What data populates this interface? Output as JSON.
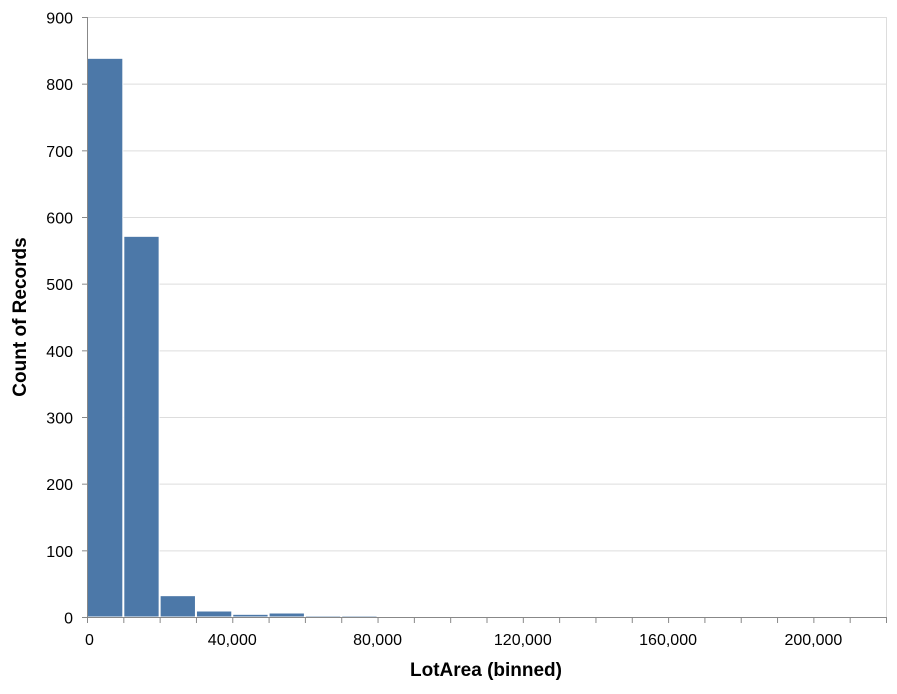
{
  "chart_data": {
    "type": "bar",
    "xlabel": "LotArea (binned)",
    "ylabel": "Count of Records",
    "xlim": [
      0,
      220000
    ],
    "ylim": [
      0,
      900
    ],
    "bin_width": 10000,
    "bins": [
      {
        "x0": 0,
        "x1": 10000,
        "count": 838
      },
      {
        "x0": 10000,
        "x1": 20000,
        "count": 571
      },
      {
        "x0": 20000,
        "x1": 30000,
        "count": 32
      },
      {
        "x0": 30000,
        "x1": 40000,
        "count": 9
      },
      {
        "x0": 40000,
        "x1": 50000,
        "count": 4
      },
      {
        "x0": 50000,
        "x1": 60000,
        "count": 6
      },
      {
        "x0": 60000,
        "x1": 70000,
        "count": 2
      },
      {
        "x0": 70000,
        "x1": 80000,
        "count": 2
      },
      {
        "x0": 110000,
        "x1": 120000,
        "count": 1
      },
      {
        "x0": 150000,
        "x1": 160000,
        "count": 1
      },
      {
        "x0": 160000,
        "x1": 170000,
        "count": 1
      },
      {
        "x0": 210000,
        "x1": 220000,
        "count": 1
      }
    ],
    "x_ticks": [
      0,
      40000,
      80000,
      120000,
      160000,
      200000
    ],
    "x_tick_labels": [
      "0",
      "40,000",
      "80,000",
      "120,000",
      "160,000",
      "200,000"
    ],
    "x_minor_ticks": [
      0,
      10000,
      20000,
      30000,
      40000,
      50000,
      60000,
      70000,
      80000,
      90000,
      100000,
      110000,
      120000,
      130000,
      140000,
      150000,
      160000,
      170000,
      180000,
      190000,
      200000,
      210000,
      220000
    ],
    "y_ticks": [
      0,
      100,
      200,
      300,
      400,
      500,
      600,
      700,
      800,
      900
    ],
    "y_tick_labels": [
      "0",
      "100",
      "200",
      "300",
      "400",
      "500",
      "600",
      "700",
      "800",
      "900"
    ],
    "grid": true,
    "colors": {
      "bar": "#4c78a8",
      "grid": "#dddddd",
      "axis": "#888888"
    }
  }
}
